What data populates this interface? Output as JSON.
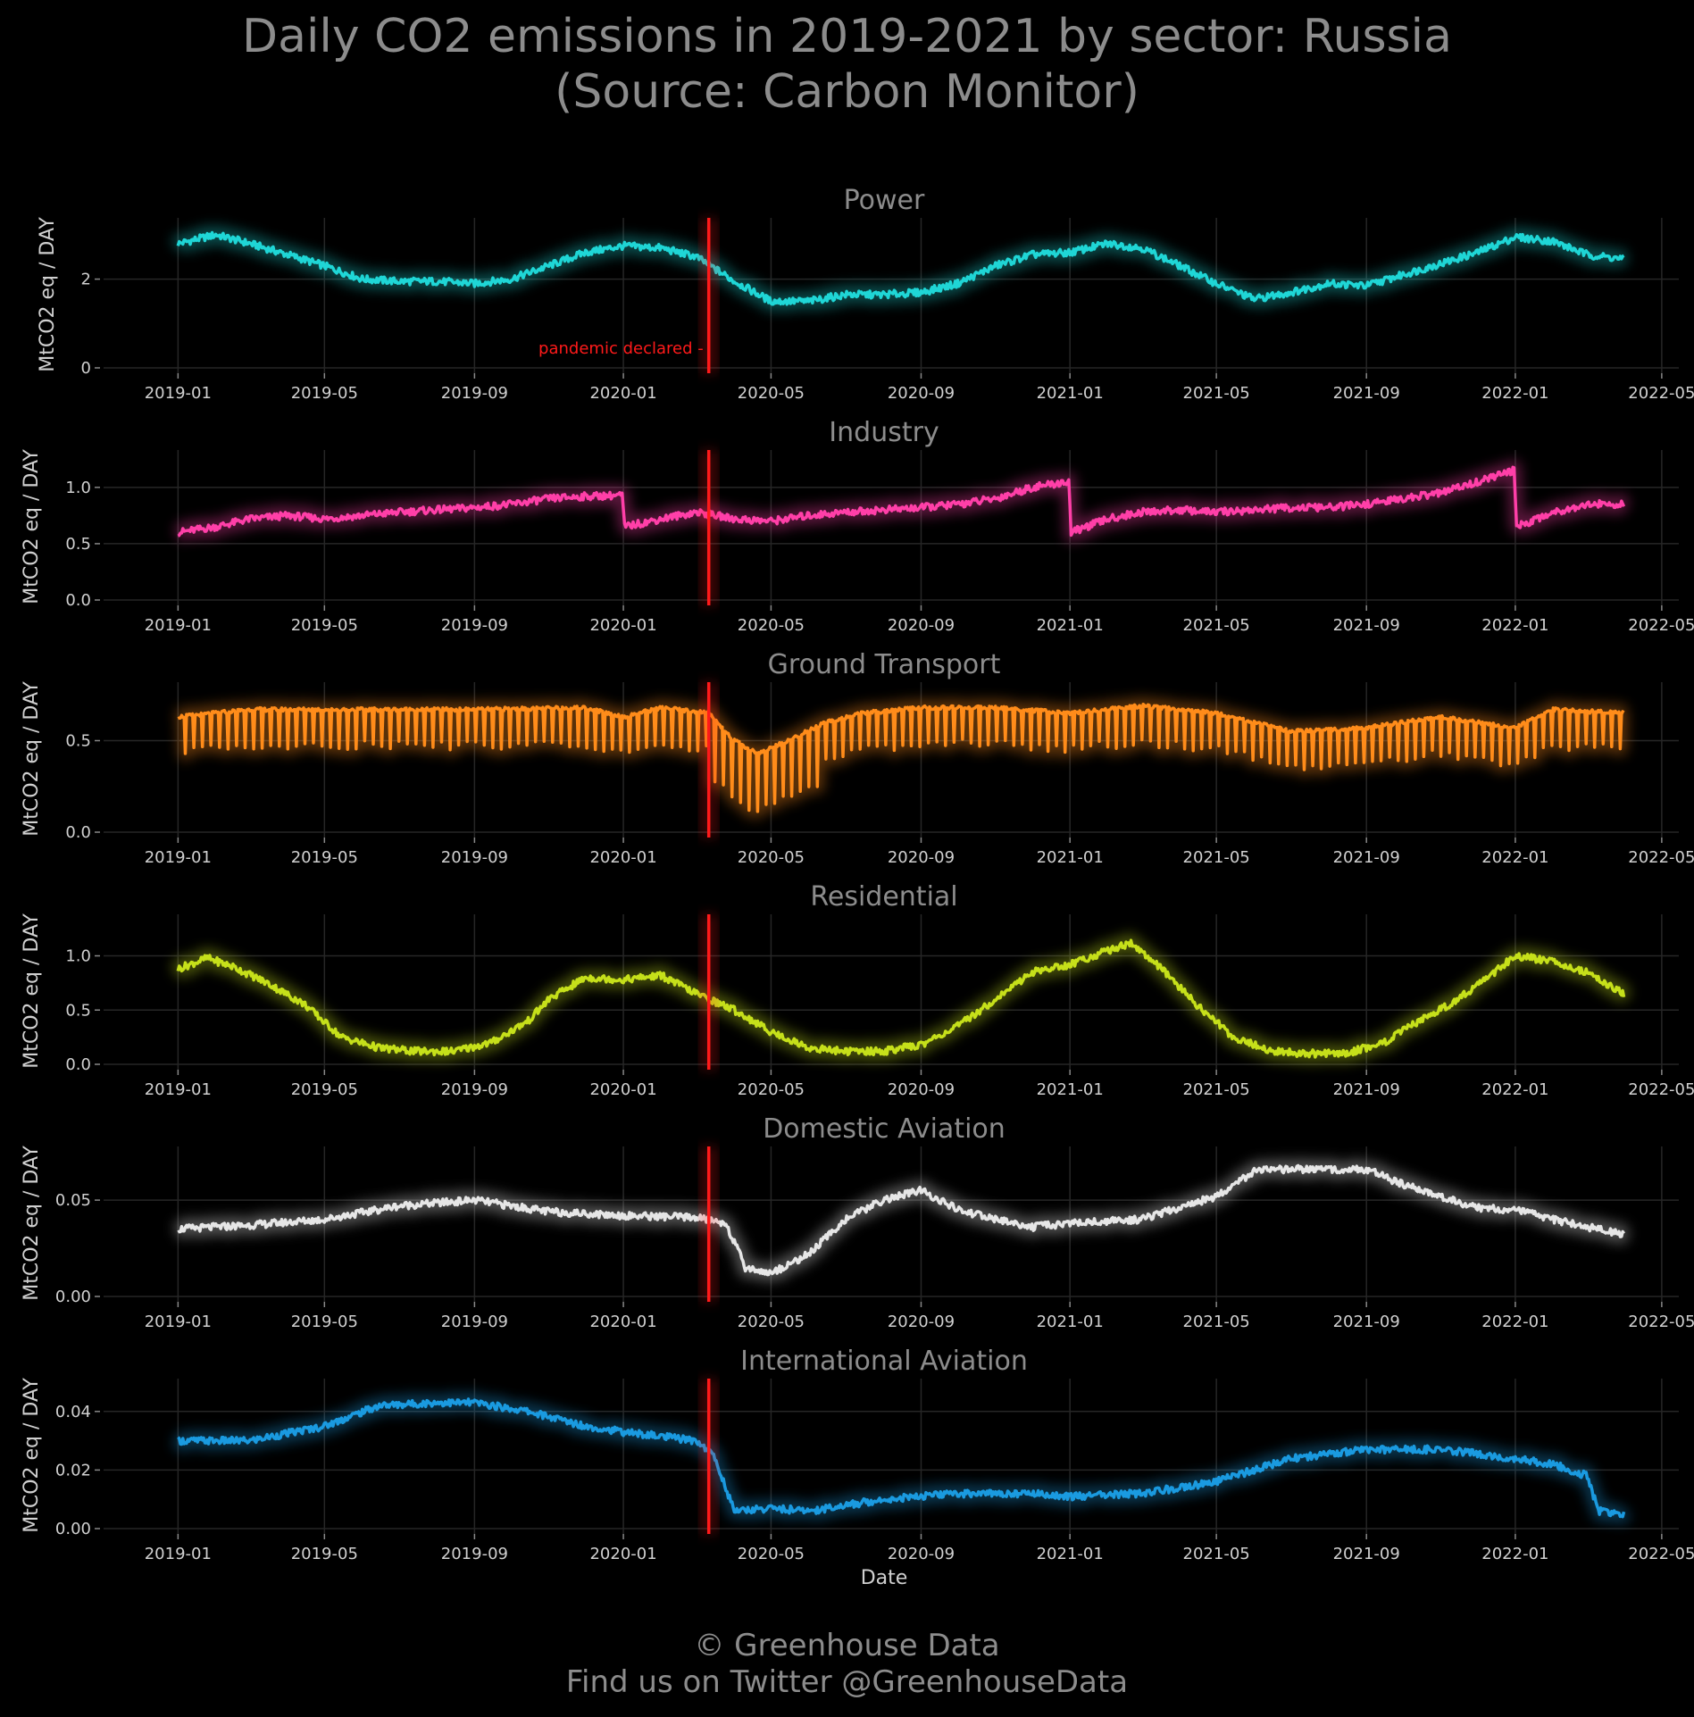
{
  "header": {
    "title_line1": "Daily CO2 emissions in 2019-2021 by sector: Russia",
    "title_line2": "(Source: Carbon Monitor)"
  },
  "footer": {
    "line1": "© Greenhouse Data",
    "line2": "Find us on Twitter @GreenhouseData"
  },
  "annotation": {
    "label": "pandemic declared",
    "date": "2020-03-11",
    "color": "#ff1a1a"
  },
  "xaxis": {
    "label": "Date",
    "ticks": [
      "2019-01",
      "2019-05",
      "2019-09",
      "2020-01",
      "2020-05",
      "2020-09",
      "2021-01",
      "2021-05",
      "2021-09",
      "2022-01",
      "2022-05"
    ],
    "range": [
      "2018-11-01",
      "2022-05-15"
    ]
  },
  "chart_data": [
    {
      "type": "line",
      "title": "Power",
      "ylabel": "MtCO2 eq / DAY",
      "ylim": [
        0,
        3.3
      ],
      "yticks": [
        "0",
        "2"
      ],
      "ytick_values": [
        0,
        2
      ],
      "color": "#1fd6d6",
      "grid": true,
      "x": [
        "2019-01-01",
        "2019-02-01",
        "2019-03-01",
        "2019-04-01",
        "2019-05-01",
        "2019-06-01",
        "2019-07-01",
        "2019-08-01",
        "2019-09-01",
        "2019-10-01",
        "2019-11-01",
        "2019-12-01",
        "2020-01-01",
        "2020-02-01",
        "2020-03-01",
        "2020-04-01",
        "2020-05-01",
        "2020-06-01",
        "2020-07-01",
        "2020-08-01",
        "2020-09-01",
        "2020-10-01",
        "2020-11-01",
        "2020-12-01",
        "2021-01-01",
        "2021-02-01",
        "2021-03-01",
        "2021-04-01",
        "2021-05-01",
        "2021-06-01",
        "2021-07-01",
        "2021-08-01",
        "2021-09-01",
        "2021-10-01",
        "2021-11-01",
        "2021-12-01",
        "2022-01-01",
        "2022-02-01",
        "2022-03-01",
        "2022-03-31"
      ],
      "values": [
        2.8,
        3.0,
        2.8,
        2.55,
        2.3,
        2.0,
        1.95,
        1.95,
        1.9,
        2.0,
        2.3,
        2.6,
        2.75,
        2.7,
        2.5,
        1.95,
        1.5,
        1.5,
        1.65,
        1.65,
        1.7,
        1.9,
        2.3,
        2.55,
        2.6,
        2.8,
        2.7,
        2.3,
        1.9,
        1.55,
        1.7,
        1.9,
        1.85,
        2.1,
        2.35,
        2.6,
        2.95,
        2.85,
        2.55,
        2.45
      ]
    },
    {
      "type": "line",
      "title": "Industry",
      "ylabel": "MtCO2 eq / DAY",
      "ylim": [
        0,
        1.3
      ],
      "yticks": [
        "0.0",
        "0.5",
        "1.0"
      ],
      "ytick_values": [
        0,
        0.5,
        1.0
      ],
      "color": "#ff3fa8",
      "grid": true,
      "x": [
        "2019-01-01",
        "2019-02-01",
        "2019-03-01",
        "2019-04-01",
        "2019-05-01",
        "2019-06-01",
        "2019-07-01",
        "2019-08-01",
        "2019-09-01",
        "2019-10-01",
        "2019-11-01",
        "2019-12-01",
        "2019-12-31",
        "2020-01-02",
        "2020-02-01",
        "2020-03-01",
        "2020-04-01",
        "2020-05-01",
        "2020-06-01",
        "2020-07-01",
        "2020-08-01",
        "2020-09-01",
        "2020-10-01",
        "2020-11-01",
        "2020-12-01",
        "2020-12-31",
        "2021-01-02",
        "2021-02-01",
        "2021-03-01",
        "2021-04-01",
        "2021-05-01",
        "2021-06-01",
        "2021-07-01",
        "2021-08-01",
        "2021-09-01",
        "2021-10-01",
        "2021-11-01",
        "2021-12-01",
        "2021-12-31",
        "2022-01-02",
        "2022-02-01",
        "2022-03-01",
        "2022-03-31"
      ],
      "values": [
        0.6,
        0.65,
        0.72,
        0.75,
        0.72,
        0.75,
        0.78,
        0.8,
        0.82,
        0.85,
        0.9,
        0.92,
        0.93,
        0.65,
        0.72,
        0.78,
        0.72,
        0.7,
        0.75,
        0.78,
        0.8,
        0.82,
        0.85,
        0.9,
        1.0,
        1.05,
        0.6,
        0.72,
        0.78,
        0.8,
        0.78,
        0.8,
        0.82,
        0.82,
        0.85,
        0.9,
        0.95,
        1.05,
        1.15,
        0.65,
        0.78,
        0.85,
        0.85
      ]
    },
    {
      "type": "line",
      "title": "Ground Transport",
      "ylabel": "MtCO2 eq / DAY",
      "ylim": [
        0,
        0.8
      ],
      "yticks": [
        "0.0",
        "0.5"
      ],
      "ytick_values": [
        0,
        0.5
      ],
      "color": "#ff8c1a",
      "grid": true,
      "x": [
        "2019-01-01",
        "2019-03-01",
        "2019-06-01",
        "2019-09-01",
        "2019-12-01",
        "2020-01-01",
        "2020-02-01",
        "2020-03-11",
        "2020-04-01",
        "2020-04-20",
        "2020-05-15",
        "2020-06-15",
        "2020-07-15",
        "2020-09-01",
        "2020-11-01",
        "2021-01-01",
        "2021-03-01",
        "2021-05-01",
        "2021-07-01",
        "2021-09-01",
        "2021-11-01",
        "2022-01-01",
        "2022-02-01",
        "2022-03-31"
      ],
      "values": [
        0.58,
        0.62,
        0.62,
        0.62,
        0.63,
        0.58,
        0.63,
        0.6,
        0.45,
        0.38,
        0.45,
        0.55,
        0.6,
        0.63,
        0.63,
        0.6,
        0.64,
        0.6,
        0.5,
        0.52,
        0.58,
        0.52,
        0.62,
        0.6
      ],
      "note": "daily series with weekly dips; envelope shown"
    },
    {
      "type": "line",
      "title": "Residential",
      "ylabel": "MtCO2 eq / DAY",
      "ylim": [
        0,
        1.35
      ],
      "yticks": [
        "0.0",
        "0.5",
        "1.0"
      ],
      "ytick_values": [
        0,
        0.5,
        1.0
      ],
      "color": "#c6e01a",
      "grid": true,
      "x": [
        "2019-01-01",
        "2019-01-25",
        "2019-02-15",
        "2019-03-15",
        "2019-04-15",
        "2019-05-15",
        "2019-06-15",
        "2019-07-15",
        "2019-08-15",
        "2019-09-15",
        "2019-10-15",
        "2019-11-01",
        "2019-12-01",
        "2020-01-01",
        "2020-02-01",
        "2020-03-01",
        "2020-04-01",
        "2020-05-01",
        "2020-06-01",
        "2020-07-01",
        "2020-08-01",
        "2020-09-01",
        "2020-10-01",
        "2020-11-01",
        "2020-12-01",
        "2021-01-01",
        "2021-02-01",
        "2021-02-20",
        "2021-03-15",
        "2021-04-15",
        "2021-05-15",
        "2021-06-15",
        "2021-07-15",
        "2021-08-15",
        "2021-09-15",
        "2021-10-15",
        "2021-11-15",
        "2021-12-15",
        "2022-01-01",
        "2022-02-01",
        "2022-03-01",
        "2022-03-31"
      ],
      "values": [
        0.88,
        0.98,
        0.9,
        0.75,
        0.55,
        0.25,
        0.15,
        0.12,
        0.12,
        0.2,
        0.4,
        0.6,
        0.8,
        0.78,
        0.82,
        0.65,
        0.5,
        0.3,
        0.15,
        0.12,
        0.12,
        0.18,
        0.35,
        0.6,
        0.85,
        0.92,
        1.05,
        1.12,
        0.9,
        0.55,
        0.25,
        0.12,
        0.1,
        0.1,
        0.2,
        0.4,
        0.6,
        0.85,
        1.0,
        0.95,
        0.85,
        0.65
      ]
    },
    {
      "type": "line",
      "title": "Domestic Aviation",
      "ylabel": "MtCO2 eq / DAY",
      "ylim": [
        0,
        0.076
      ],
      "yticks": [
        "0.00",
        "0.05"
      ],
      "ytick_values": [
        0,
        0.05
      ],
      "color": "#e6e6e6",
      "grid": true,
      "x": [
        "2019-01-01",
        "2019-03-01",
        "2019-05-01",
        "2019-07-01",
        "2019-09-01",
        "2019-11-01",
        "2020-01-01",
        "2020-03-01",
        "2020-03-25",
        "2020-04-10",
        "2020-05-01",
        "2020-06-01",
        "2020-07-01",
        "2020-08-01",
        "2020-09-01",
        "2020-10-01",
        "2020-11-01",
        "2020-12-01",
        "2021-01-01",
        "2021-03-01",
        "2021-05-01",
        "2021-06-01",
        "2021-07-01",
        "2021-09-01",
        "2021-10-01",
        "2021-12-01",
        "2022-01-01",
        "2022-02-01",
        "2022-03-31"
      ],
      "values": [
        0.035,
        0.037,
        0.04,
        0.047,
        0.05,
        0.044,
        0.042,
        0.041,
        0.038,
        0.015,
        0.012,
        0.022,
        0.04,
        0.05,
        0.055,
        0.045,
        0.04,
        0.036,
        0.038,
        0.04,
        0.052,
        0.065,
        0.066,
        0.066,
        0.058,
        0.046,
        0.045,
        0.04,
        0.032
      ]
    },
    {
      "type": "line",
      "title": "International Aviation",
      "ylabel": "MtCO2 eq / DAY",
      "xlabel": "Date",
      "ylim": [
        0,
        0.05
      ],
      "yticks": [
        "0.00",
        "0.02",
        "0.04"
      ],
      "ytick_values": [
        0,
        0.02,
        0.04
      ],
      "color": "#1a9ae0",
      "grid": true,
      "x": [
        "2019-01-01",
        "2019-03-01",
        "2019-05-01",
        "2019-06-15",
        "2019-08-01",
        "2019-09-01",
        "2019-10-15",
        "2019-12-01",
        "2020-01-01",
        "2020-03-01",
        "2020-03-15",
        "2020-04-01",
        "2020-05-01",
        "2020-06-01",
        "2020-08-01",
        "2020-10-01",
        "2020-12-01",
        "2021-01-01",
        "2021-03-01",
        "2021-05-01",
        "2021-07-01",
        "2021-09-01",
        "2021-11-01",
        "2022-01-01",
        "2022-02-01",
        "2022-03-01",
        "2022-03-10",
        "2022-03-31"
      ],
      "values": [
        0.03,
        0.03,
        0.035,
        0.042,
        0.043,
        0.043,
        0.04,
        0.035,
        0.033,
        0.03,
        0.025,
        0.006,
        0.007,
        0.006,
        0.01,
        0.012,
        0.012,
        0.011,
        0.012,
        0.016,
        0.024,
        0.027,
        0.027,
        0.024,
        0.022,
        0.018,
        0.006,
        0.005
      ]
    }
  ]
}
